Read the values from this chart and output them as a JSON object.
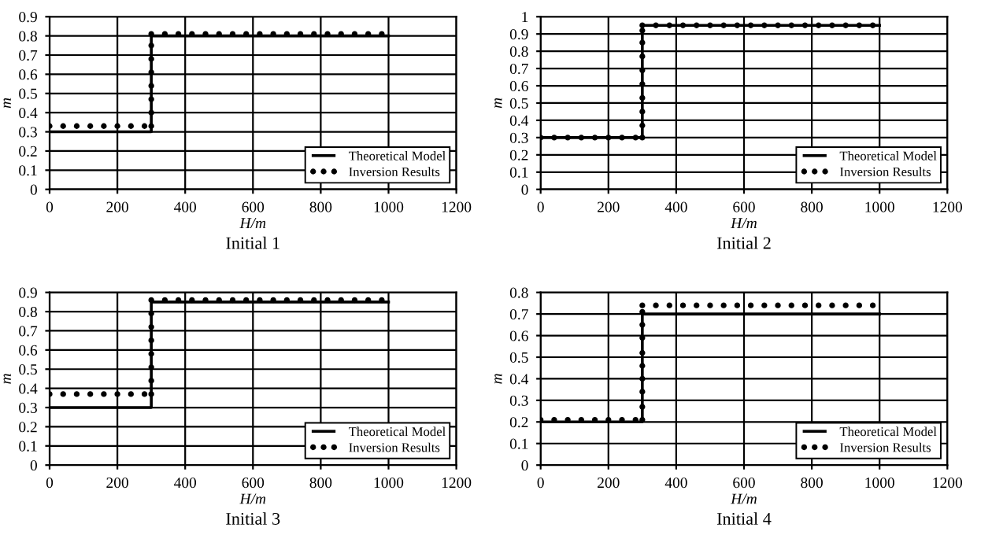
{
  "chart_data": [
    {
      "type": "line",
      "title": "Initial 1",
      "xlabel": "H/m",
      "ylabel": "m",
      "xlim": [
        0,
        1200
      ],
      "xticks": [
        0,
        200,
        400,
        600,
        800,
        1000,
        1200
      ],
      "ylim": [
        0,
        0.9
      ],
      "yticks": [
        0,
        0.1,
        0.2,
        0.3,
        0.4,
        0.5,
        0.6,
        0.7,
        0.8,
        0.9
      ],
      "grid": true,
      "legend": "bottom right",
      "series": [
        {
          "name": "Theoretical Model",
          "color": "#000000",
          "marker": "none",
          "line_style": "solid",
          "x": [
            0,
            300,
            300,
            1000
          ],
          "values": [
            0.3,
            0.3,
            0.8,
            0.8
          ]
        },
        {
          "name": "Inversion Results",
          "type": "scatter",
          "color": "#000000",
          "marker": "circle",
          "x": [
            0,
            40,
            80,
            120,
            160,
            200,
            240,
            280,
            300,
            300,
            300,
            300,
            300,
            300,
            300,
            300,
            340,
            380,
            420,
            460,
            500,
            540,
            580,
            620,
            660,
            700,
            740,
            780,
            820,
            860,
            900,
            940,
            980
          ],
          "values": [
            0.33,
            0.33,
            0.33,
            0.33,
            0.33,
            0.33,
            0.33,
            0.33,
            0.33,
            0.4,
            0.47,
            0.54,
            0.61,
            0.68,
            0.75,
            0.81,
            0.81,
            0.81,
            0.81,
            0.81,
            0.81,
            0.81,
            0.81,
            0.81,
            0.81,
            0.81,
            0.81,
            0.81,
            0.81,
            0.81,
            0.81,
            0.81,
            0.81
          ]
        }
      ]
    },
    {
      "type": "line",
      "title": "Initial 2",
      "xlabel": "H/m",
      "ylabel": "m",
      "xlim": [
        0,
        1200
      ],
      "xticks": [
        0,
        200,
        400,
        600,
        800,
        1000,
        1200
      ],
      "ylim": [
        0,
        1
      ],
      "yticks": [
        0,
        0.1,
        0.2,
        0.3,
        0.4,
        0.5,
        0.6,
        0.7,
        0.8,
        0.9,
        1
      ],
      "grid": true,
      "legend": "bottom right",
      "series": [
        {
          "name": "Theoretical Model",
          "color": "#000000",
          "marker": "none",
          "line_style": "solid",
          "x": [
            0,
            300,
            300,
            1000
          ],
          "values": [
            0.3,
            0.3,
            0.95,
            0.95
          ]
        },
        {
          "name": "Inversion Results",
          "type": "scatter",
          "color": "#000000",
          "marker": "circle",
          "x": [
            0,
            40,
            80,
            120,
            160,
            200,
            240,
            280,
            300,
            300,
            300,
            300,
            300,
            300,
            300,
            300,
            300,
            300,
            340,
            380,
            420,
            460,
            500,
            540,
            580,
            620,
            660,
            700,
            740,
            780,
            820,
            860,
            900,
            940,
            980
          ],
          "values": [
            0.3,
            0.3,
            0.3,
            0.3,
            0.3,
            0.3,
            0.3,
            0.3,
            0.3,
            0.37,
            0.45,
            0.53,
            0.61,
            0.69,
            0.77,
            0.85,
            0.92,
            0.95,
            0.95,
            0.95,
            0.95,
            0.95,
            0.95,
            0.95,
            0.95,
            0.95,
            0.95,
            0.95,
            0.95,
            0.95,
            0.95,
            0.95,
            0.95,
            0.95,
            0.95
          ]
        }
      ]
    },
    {
      "type": "line",
      "title": "Initial 3",
      "xlabel": "H/m",
      "ylabel": "m",
      "xlim": [
        0,
        1200
      ],
      "xticks": [
        0,
        200,
        400,
        600,
        800,
        1000,
        1200
      ],
      "ylim": [
        0,
        0.9
      ],
      "yticks": [
        0,
        0.1,
        0.2,
        0.3,
        0.4,
        0.5,
        0.6,
        0.7,
        0.8,
        0.9
      ],
      "grid": true,
      "legend": "bottom right",
      "series": [
        {
          "name": "Theoretical Model",
          "color": "#000000",
          "marker": "none",
          "line_style": "solid",
          "x": [
            0,
            300,
            300,
            1000
          ],
          "values": [
            0.3,
            0.3,
            0.85,
            0.85
          ]
        },
        {
          "name": "Inversion Results",
          "type": "scatter",
          "color": "#000000",
          "marker": "circle",
          "x": [
            0,
            40,
            80,
            120,
            160,
            200,
            240,
            280,
            300,
            300,
            300,
            300,
            300,
            300,
            300,
            300,
            340,
            380,
            420,
            460,
            500,
            540,
            580,
            620,
            660,
            700,
            740,
            780,
            820,
            860,
            900,
            940,
            980
          ],
          "values": [
            0.37,
            0.37,
            0.37,
            0.37,
            0.37,
            0.37,
            0.37,
            0.37,
            0.37,
            0.44,
            0.51,
            0.58,
            0.65,
            0.72,
            0.79,
            0.86,
            0.86,
            0.86,
            0.86,
            0.86,
            0.86,
            0.86,
            0.86,
            0.86,
            0.86,
            0.86,
            0.86,
            0.86,
            0.86,
            0.86,
            0.86,
            0.86,
            0.86
          ]
        }
      ]
    },
    {
      "type": "line",
      "title": "Initial 4",
      "xlabel": "H/m",
      "ylabel": "m",
      "xlim": [
        0,
        1200
      ],
      "xticks": [
        0,
        200,
        400,
        600,
        800,
        1000,
        1200
      ],
      "ylim": [
        0,
        0.8
      ],
      "yticks": [
        0,
        0.1,
        0.2,
        0.3,
        0.4,
        0.5,
        0.6,
        0.7,
        0.8
      ],
      "grid": true,
      "legend": "bottom right",
      "series": [
        {
          "name": "Theoretical Model",
          "color": "#000000",
          "marker": "none",
          "line_style": "solid",
          "x": [
            0,
            300,
            300,
            1000
          ],
          "values": [
            0.2,
            0.2,
            0.7,
            0.7
          ]
        },
        {
          "name": "Inversion Results",
          "type": "scatter",
          "color": "#000000",
          "marker": "circle",
          "x": [
            0,
            40,
            80,
            120,
            160,
            200,
            240,
            280,
            300,
            300,
            300,
            300,
            300,
            300,
            300,
            300,
            300,
            300,
            340,
            380,
            420,
            460,
            500,
            540,
            580,
            620,
            660,
            700,
            740,
            780,
            820,
            860,
            900,
            940,
            980
          ],
          "values": [
            0.21,
            0.21,
            0.21,
            0.21,
            0.21,
            0.21,
            0.21,
            0.21,
            0.21,
            0.27,
            0.34,
            0.4,
            0.46,
            0.52,
            0.59,
            0.65,
            0.71,
            0.74,
            0.74,
            0.74,
            0.74,
            0.74,
            0.74,
            0.74,
            0.74,
            0.74,
            0.74,
            0.74,
            0.74,
            0.74,
            0.74,
            0.74,
            0.74,
            0.74,
            0.74
          ]
        }
      ]
    }
  ]
}
